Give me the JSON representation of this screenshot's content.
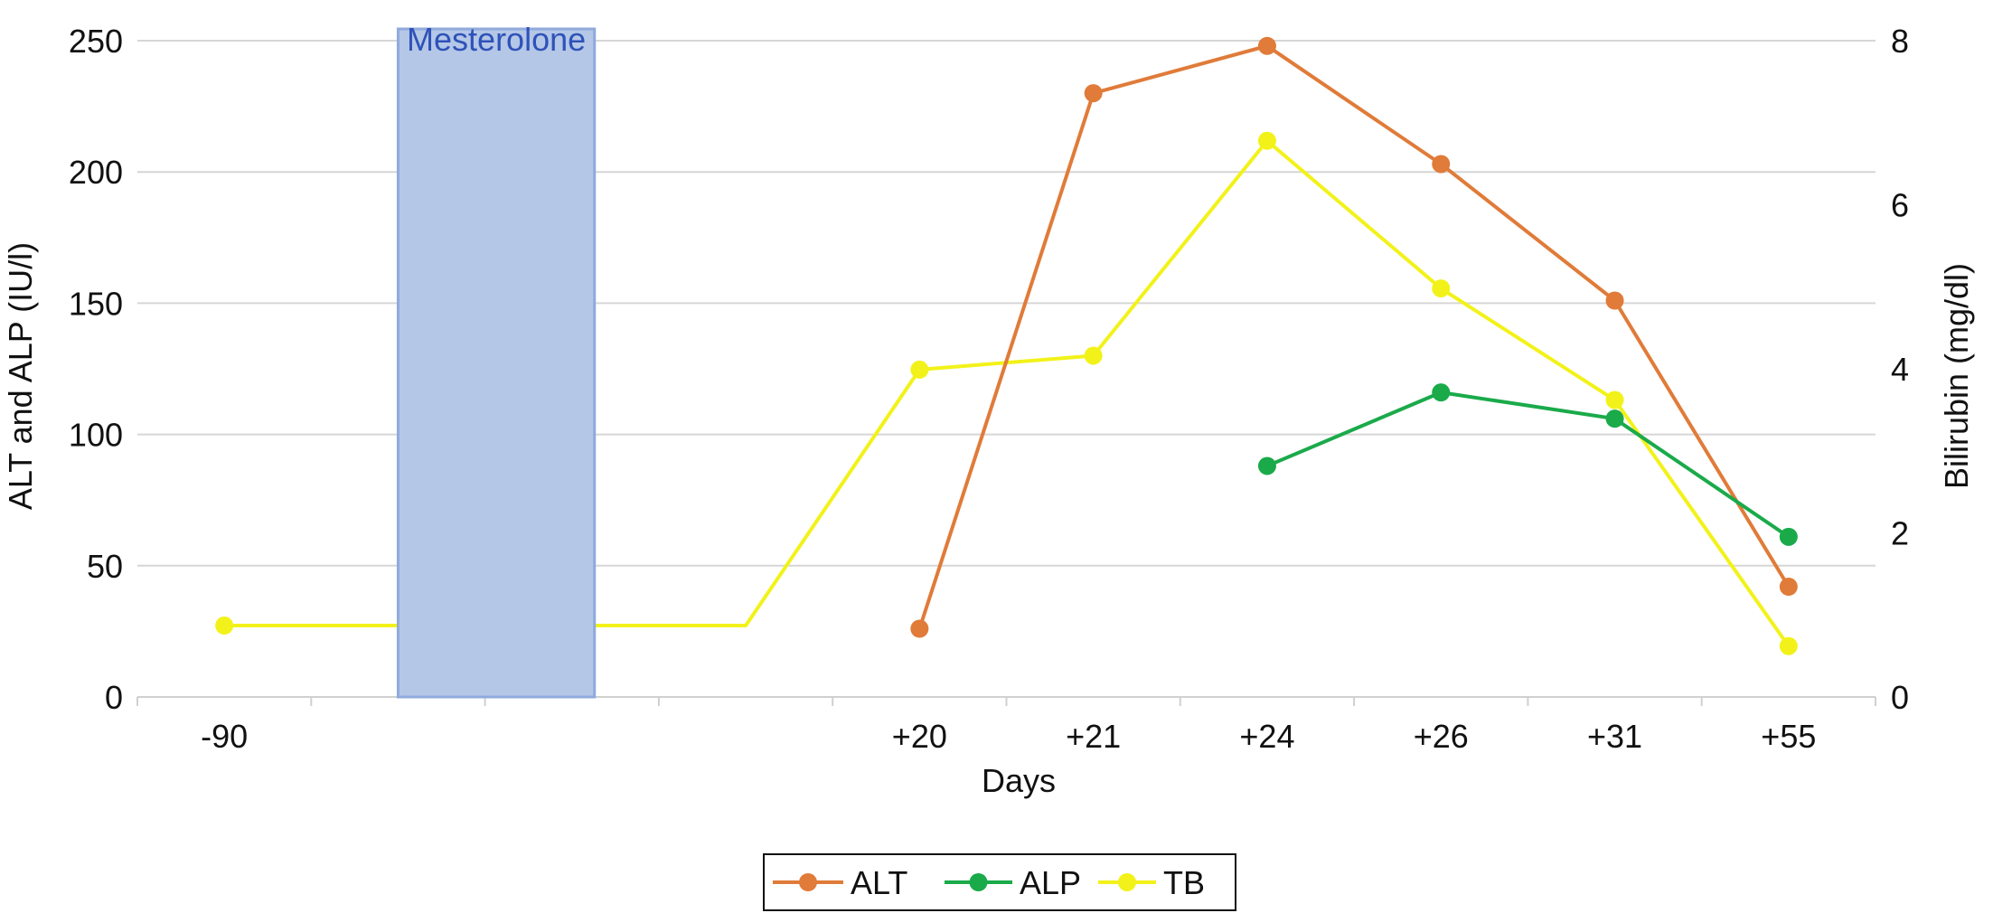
{
  "chart_data": {
    "type": "line",
    "categories": [
      "-90",
      "",
      "",
      "",
      "+20",
      "+21",
      "+24",
      "+26",
      "+31",
      "+55"
    ],
    "xlabel": "Days",
    "ylabel": "ALT and ALP (IU/l)",
    "y2label": "Bilirubin (mg/dl)",
    "ylim": [
      0,
      250
    ],
    "yticks": [
      0,
      50,
      100,
      150,
      200,
      250
    ],
    "y2lim": [
      0,
      8
    ],
    "y2ticks": [
      0,
      2,
      4,
      6,
      8
    ],
    "grid": true,
    "legend_position": "bottom",
    "shaded_region": {
      "label": "Mesterolone",
      "color": "#b4c7e7",
      "border_color": "#8faadc",
      "label_color": "#2f52b8"
    },
    "series": [
      {
        "name": "ALT",
        "axis": "left",
        "color": "#e07b39",
        "points": [
          {
            "x": "+20",
            "y": 26
          },
          {
            "x": "+21",
            "y": 230
          },
          {
            "x": "+24",
            "y": 248
          },
          {
            "x": "+26",
            "y": 203
          },
          {
            "x": "+31",
            "y": 151
          },
          {
            "x": "+55",
            "y": 42
          }
        ]
      },
      {
        "name": "ALP",
        "axis": "left",
        "color": "#1aaa4a",
        "points": [
          {
            "x": "+24",
            "y": 88
          },
          {
            "x": "+26",
            "y": 116
          },
          {
            "x": "+31",
            "y": 106
          },
          {
            "x": "+55",
            "y": 61
          }
        ]
      },
      {
        "name": "TB",
        "axis": "right",
        "color": "#f2f21a",
        "points": [
          {
            "x": "-90",
            "y": 0.87
          },
          {
            "x": "",
            "y": 0.87
          },
          {
            "x": "",
            "y": 0.87
          },
          {
            "x": "",
            "y": 0.87
          },
          {
            "x": "+20",
            "y": 3.99
          },
          {
            "x": "+21",
            "y": 4.16
          },
          {
            "x": "+24",
            "y": 6.78
          },
          {
            "x": "+26",
            "y": 4.98
          },
          {
            "x": "+31",
            "y": 3.62
          },
          {
            "x": "+55",
            "y": 0.62
          }
        ],
        "marker_indices": [
          0,
          4,
          5,
          6,
          7,
          8,
          9
        ]
      }
    ]
  }
}
